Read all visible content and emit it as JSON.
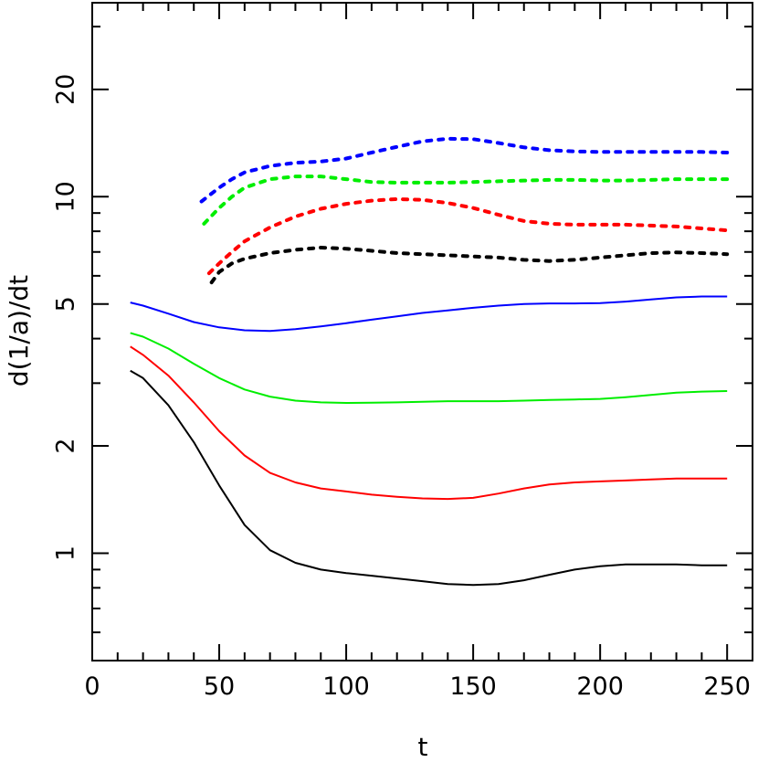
{
  "chart_data": {
    "type": "line",
    "title": "",
    "xlabel": "t",
    "ylabel": "d(1/a)/dt",
    "xlim": [
      0,
      260
    ],
    "ylim": [
      0.5,
      35
    ],
    "y_scale": "log",
    "grid": false,
    "legend": "none",
    "x_ticks": [
      0,
      50,
      100,
      150,
      200,
      250
    ],
    "x_tick_labels": [
      "0",
      "50",
      "100",
      "150",
      "200",
      "250"
    ],
    "y_ticks": [
      1,
      2,
      5,
      10,
      20
    ],
    "y_tick_labels": [
      "1",
      "2",
      "5",
      "10",
      "20"
    ],
    "series": [
      {
        "color": "#000000",
        "style": "solid",
        "x": [
          15,
          20,
          30,
          40,
          50,
          60,
          70,
          80,
          90,
          100,
          110,
          120,
          130,
          140,
          150,
          160,
          170,
          180,
          190,
          200,
          210,
          220,
          230,
          240,
          250
        ],
        "y": [
          3.25,
          3.1,
          2.6,
          2.05,
          1.55,
          1.2,
          1.02,
          0.94,
          0.9,
          0.88,
          0.865,
          0.85,
          0.835,
          0.82,
          0.815,
          0.82,
          0.84,
          0.87,
          0.9,
          0.92,
          0.93,
          0.93,
          0.93,
          0.925,
          0.925
        ]
      },
      {
        "color": "#ff0000",
        "style": "solid",
        "x": [
          15,
          20,
          30,
          40,
          50,
          60,
          70,
          80,
          90,
          100,
          110,
          120,
          130,
          140,
          150,
          160,
          170,
          180,
          190,
          200,
          210,
          220,
          230,
          240,
          250
        ],
        "y": [
          3.8,
          3.6,
          3.15,
          2.65,
          2.2,
          1.88,
          1.68,
          1.58,
          1.52,
          1.49,
          1.46,
          1.44,
          1.425,
          1.42,
          1.43,
          1.47,
          1.52,
          1.56,
          1.58,
          1.59,
          1.6,
          1.61,
          1.62,
          1.62,
          1.62
        ]
      },
      {
        "color": "#00ee00",
        "style": "solid",
        "x": [
          15,
          20,
          30,
          40,
          50,
          60,
          70,
          80,
          90,
          100,
          110,
          120,
          130,
          140,
          150,
          160,
          170,
          180,
          190,
          200,
          210,
          220,
          230,
          240,
          250
        ],
        "y": [
          4.15,
          4.05,
          3.75,
          3.4,
          3.1,
          2.88,
          2.75,
          2.68,
          2.65,
          2.64,
          2.645,
          2.65,
          2.66,
          2.67,
          2.67,
          2.67,
          2.68,
          2.69,
          2.7,
          2.71,
          2.74,
          2.78,
          2.82,
          2.84,
          2.85
        ]
      },
      {
        "color": "#0000ff",
        "style": "solid",
        "x": [
          15,
          20,
          30,
          40,
          50,
          60,
          70,
          80,
          90,
          100,
          110,
          120,
          130,
          140,
          150,
          160,
          170,
          180,
          190,
          200,
          210,
          220,
          230,
          240,
          250
        ],
        "y": [
          5.05,
          4.95,
          4.7,
          4.45,
          4.3,
          4.22,
          4.2,
          4.25,
          4.33,
          4.42,
          4.52,
          4.62,
          4.72,
          4.8,
          4.88,
          4.95,
          5.0,
          5.02,
          5.02,
          5.03,
          5.08,
          5.15,
          5.22,
          5.25,
          5.25
        ]
      },
      {
        "color": "#000000",
        "style": "dotted",
        "x": [
          47,
          50,
          55,
          60,
          70,
          80,
          90,
          100,
          110,
          120,
          130,
          140,
          150,
          160,
          170,
          180,
          190,
          200,
          210,
          220,
          230,
          240,
          250
        ],
        "y": [
          5.75,
          6.15,
          6.5,
          6.7,
          6.95,
          7.1,
          7.2,
          7.15,
          7.05,
          6.95,
          6.9,
          6.85,
          6.8,
          6.75,
          6.65,
          6.6,
          6.65,
          6.75,
          6.85,
          6.95,
          6.98,
          6.95,
          6.9
        ]
      },
      {
        "color": "#ff0000",
        "style": "dotted",
        "x": [
          46,
          50,
          55,
          60,
          70,
          80,
          90,
          100,
          110,
          120,
          130,
          140,
          150,
          160,
          170,
          180,
          190,
          200,
          210,
          220,
          230,
          240,
          250
        ],
        "y": [
          6.1,
          6.5,
          7.0,
          7.5,
          8.2,
          8.8,
          9.25,
          9.55,
          9.75,
          9.85,
          9.8,
          9.6,
          9.3,
          8.9,
          8.55,
          8.4,
          8.35,
          8.35,
          8.35,
          8.3,
          8.25,
          8.15,
          8.05
        ]
      },
      {
        "color": "#00ee00",
        "style": "dotted",
        "x": [
          44,
          50,
          55,
          60,
          70,
          80,
          90,
          100,
          110,
          120,
          130,
          140,
          150,
          160,
          170,
          180,
          190,
          200,
          210,
          220,
          230,
          240,
          250
        ],
        "y": [
          8.4,
          9.3,
          10.0,
          10.6,
          11.2,
          11.4,
          11.4,
          11.2,
          11.0,
          10.95,
          10.95,
          10.95,
          11.0,
          11.05,
          11.1,
          11.15,
          11.15,
          11.1,
          11.1,
          11.15,
          11.2,
          11.2,
          11.2
        ]
      },
      {
        "color": "#0000ff",
        "style": "dotted",
        "x": [
          43,
          50,
          55,
          60,
          70,
          80,
          90,
          100,
          110,
          120,
          130,
          140,
          150,
          160,
          170,
          180,
          190,
          200,
          210,
          220,
          230,
          240,
          250
        ],
        "y": [
          9.7,
          10.6,
          11.2,
          11.7,
          12.2,
          12.45,
          12.55,
          12.8,
          13.3,
          13.8,
          14.3,
          14.55,
          14.5,
          14.15,
          13.75,
          13.5,
          13.4,
          13.35,
          13.35,
          13.35,
          13.35,
          13.35,
          13.3
        ]
      }
    ]
  }
}
